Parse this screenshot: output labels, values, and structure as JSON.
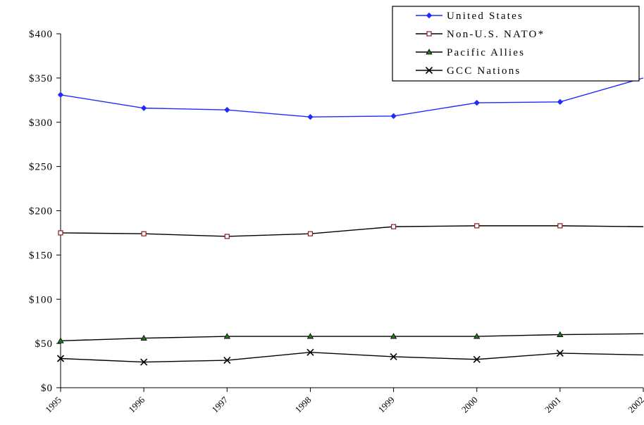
{
  "chart_data": {
    "type": "line",
    "title": "",
    "xlabel": "",
    "ylabel": "",
    "x": [
      "1995",
      "1996",
      "1997",
      "1998",
      "1999",
      "2000",
      "2001",
      "2002"
    ],
    "ylim": [
      0,
      400
    ],
    "yticks": [
      "$0",
      "$50",
      "$100",
      "$150",
      "$200",
      "$250",
      "$300",
      "$350",
      "$400"
    ],
    "grid": false,
    "legend_position": "top-right",
    "series": [
      {
        "name": "United States",
        "color": "#1f2bff",
        "marker": "diamond",
        "values": [
          331,
          316,
          314,
          306,
          307,
          322,
          323,
          350
        ]
      },
      {
        "name": "Non-U.S. NATO*",
        "color": "#000000",
        "marker_color": "#8b1a1a",
        "marker": "square",
        "values": [
          175,
          174,
          171,
          174,
          182,
          183,
          183,
          182
        ]
      },
      {
        "name": "Pacific Allies",
        "color": "#000000",
        "marker_color": "#1a7a1a",
        "marker": "triangle",
        "values": [
          53,
          56,
          58,
          58,
          58,
          58,
          60,
          61
        ]
      },
      {
        "name": "GCC Nations",
        "color": "#000000",
        "marker": "x",
        "values": [
          33,
          29,
          31,
          40,
          35,
          32,
          39,
          37
        ]
      }
    ]
  }
}
